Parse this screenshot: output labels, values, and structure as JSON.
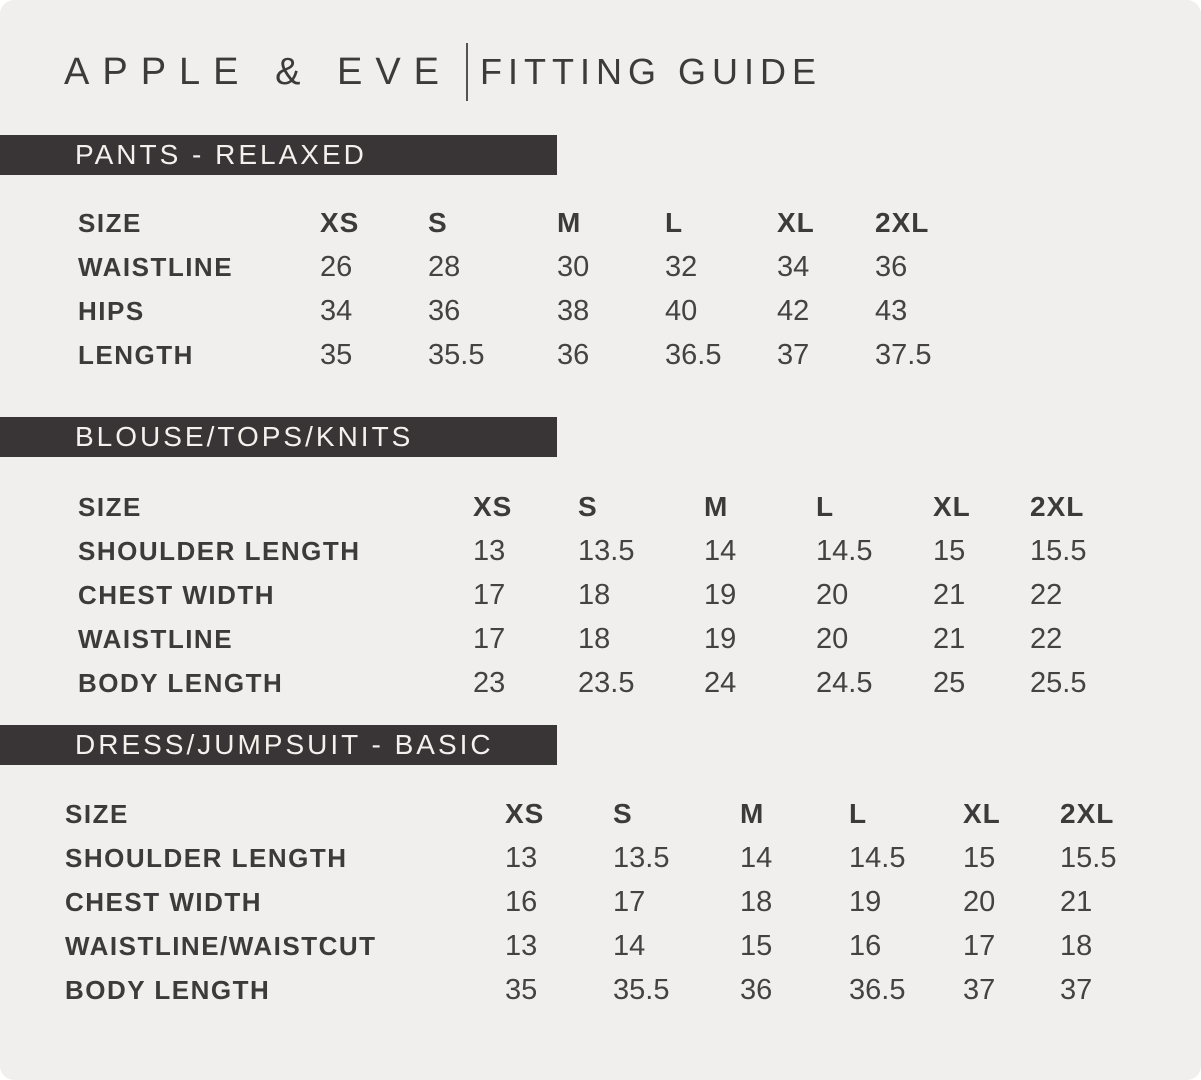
{
  "header": {
    "brand": "APPLE & EVE",
    "title": "FITTING GUIDE"
  },
  "colors": {
    "background": "#f0efed",
    "bar": "#393536",
    "bar_text": "#f3f0ed",
    "ink": "#3d3a3b"
  },
  "sections": [
    {
      "title": "PANTS - RELAXED",
      "size_label": "SIZE",
      "sizes": [
        "XS",
        "S",
        "M",
        "L",
        "XL",
        "2XL"
      ],
      "rows": [
        {
          "label": "WAISTLINE",
          "values": [
            "26",
            "28",
            "30",
            "32",
            "34",
            "36"
          ]
        },
        {
          "label": "HIPS",
          "values": [
            "34",
            "36",
            "38",
            "40",
            "42",
            "43"
          ]
        },
        {
          "label": "LENGTH",
          "values": [
            "35",
            "35.5",
            "36",
            "36.5",
            "37",
            "37.5"
          ]
        }
      ]
    },
    {
      "title": "BLOUSE/TOPS/KNITS",
      "size_label": "SIZE",
      "sizes": [
        "XS",
        "S",
        "M",
        "L",
        "XL",
        "2XL"
      ],
      "rows": [
        {
          "label": "SHOULDER LENGTH",
          "values": [
            "13",
            "13.5",
            "14",
            "14.5",
            "15",
            "15.5"
          ]
        },
        {
          "label": "CHEST WIDTH",
          "values": [
            "17",
            "18",
            "19",
            "20",
            "21",
            "22"
          ]
        },
        {
          "label": "WAISTLINE",
          "values": [
            "17",
            "18",
            "19",
            "20",
            "21",
            "22"
          ]
        },
        {
          "label": "BODY LENGTH",
          "values": [
            "23",
            "23.5",
            "24",
            "24.5",
            "25",
            "25.5"
          ]
        }
      ]
    },
    {
      "title": "DRESS/JUMPSUIT - BASIC",
      "size_label": "SIZE",
      "sizes": [
        "XS",
        "S",
        "M",
        "L",
        "XL",
        "2XL"
      ],
      "rows": [
        {
          "label": "SHOULDER LENGTH",
          "values": [
            "13",
            "13.5",
            "14",
            "14.5",
            "15",
            "15.5"
          ]
        },
        {
          "label": "CHEST WIDTH",
          "values": [
            "16",
            "17",
            "18",
            "19",
            "20",
            "21"
          ]
        },
        {
          "label": "WAISTLINE/WAISTCUT",
          "values": [
            "13",
            "14",
            "15",
            "16",
            "17",
            "18"
          ]
        },
        {
          "label": "BODY LENGTH",
          "values": [
            "35",
            "35.5",
            "36",
            "36.5",
            "37",
            "37"
          ]
        }
      ]
    }
  ]
}
